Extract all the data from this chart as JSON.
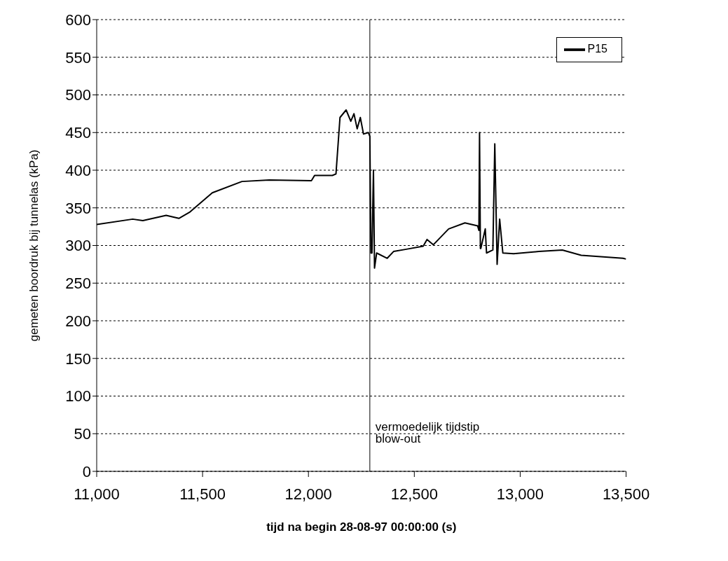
{
  "chart_data": {
    "type": "line",
    "xlabel": "tijd na begin 28-08-97 00:00:00 (s)",
    "ylabel": "gemeten boordruk bij tunnelas (kPa)",
    "xlim": [
      11000,
      13500
    ],
    "xticks": [
      {
        "value": 11000,
        "label": "11,000"
      },
      {
        "value": 11500,
        "label": "11,500"
      },
      {
        "value": 12000,
        "label": "12,000"
      },
      {
        "value": 12500,
        "label": "12,500"
      },
      {
        "value": 13000,
        "label": "13,000"
      },
      {
        "value": 13500,
        "label": "13,500"
      }
    ],
    "ylim": [
      0,
      600
    ],
    "yticks": [
      0,
      50,
      100,
      150,
      200,
      250,
      300,
      350,
      400,
      450,
      500,
      550,
      600
    ],
    "grid": "y",
    "legend": "top right",
    "marker": "none",
    "line_style": "solid",
    "ref_lines": [
      {
        "axis": "x",
        "value": 12290,
        "label": "vermoedelijk tijdstip blow-out",
        "color": "#000000"
      }
    ],
    "series": [
      {
        "name": "P15",
        "color": "#000000",
        "x": [
          11000,
          11170,
          11218,
          11328,
          11388,
          11438,
          11546,
          11686,
          11815,
          12014,
          12029,
          12113,
          12130,
          12149,
          12178,
          12200,
          12215,
          12230,
          12245,
          12260,
          12283,
          12290,
          12295,
          12300,
          12307,
          12312,
          12322,
          12372,
          12402,
          12462,
          12542,
          12560,
          12590,
          12662,
          12739,
          12799,
          12805,
          12808,
          12812,
          12814,
          12835,
          12841,
          12871,
          12880,
          12891,
          12903,
          12918,
          12969,
          13088,
          13199,
          13288,
          13485,
          13500
        ],
        "values": [
          328,
          335,
          333,
          340,
          336,
          344,
          370,
          385,
          387,
          386,
          393,
          393,
          395,
          470,
          480,
          465,
          475,
          455,
          470,
          448,
          450,
          445,
          290,
          290,
          400,
          270,
          290,
          283,
          292,
          295,
          299,
          308,
          301,
          322,
          330,
          326,
          320,
          450,
          296,
          296,
          322,
          290,
          294,
          435,
          275,
          335,
          290,
          289,
          292,
          294,
          287,
          283,
          282
        ]
      }
    ]
  }
}
